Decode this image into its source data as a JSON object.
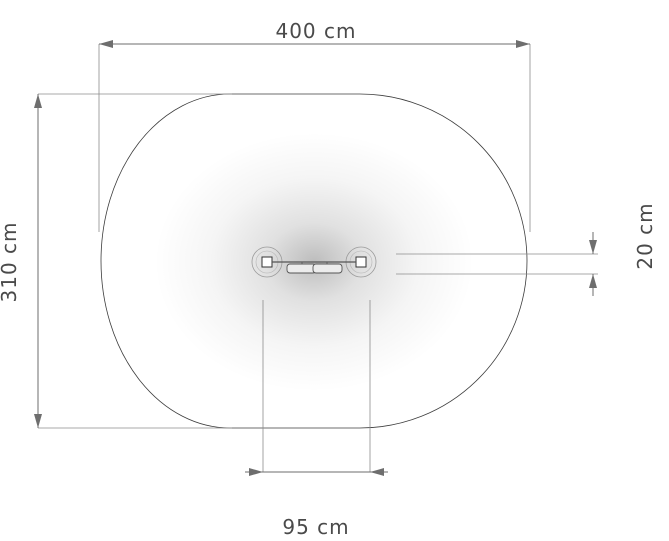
{
  "dimensions": {
    "width": "400 cm",
    "depth": "310 cm",
    "post_spacing": "95 cm",
    "seat_width": "20 cm"
  }
}
